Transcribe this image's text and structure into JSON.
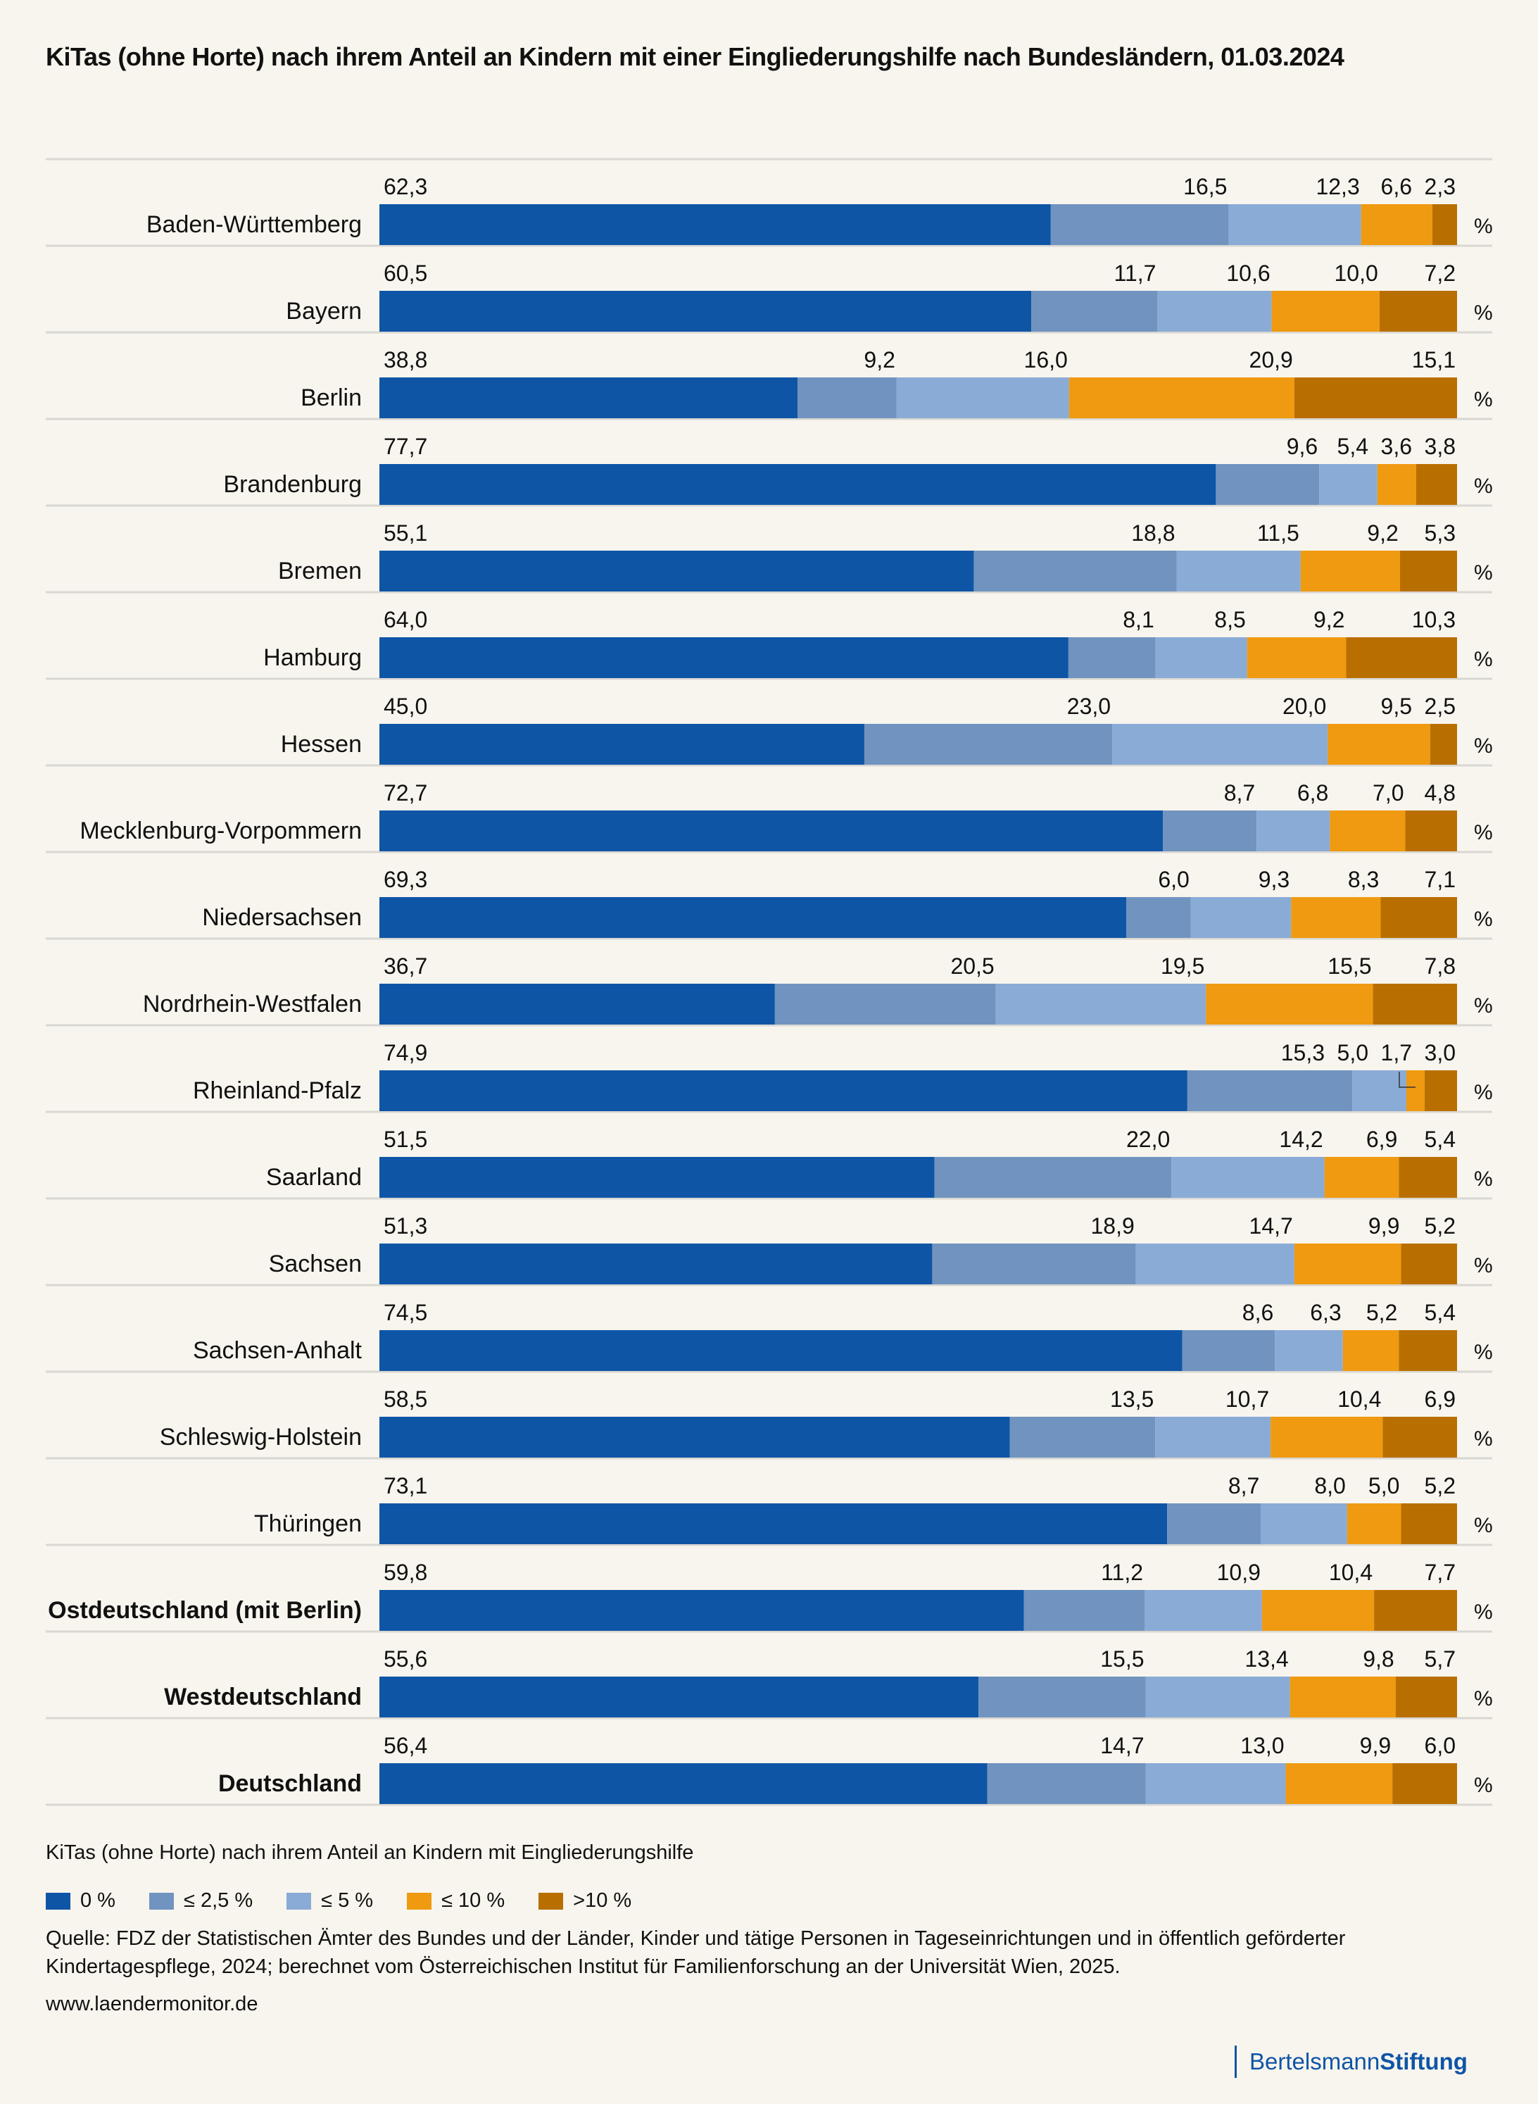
{
  "title": "KiTas (ohne Horte) nach ihrem Anteil an Kindern mit einer Eingliederungshilfe nach Bundesländern, 01.03.2024",
  "unit_label": "%",
  "subtitle": "KiTas (ohne Horte) nach ihrem Anteil an Kindern mit Eingliederungshilfe",
  "legend": [
    {
      "label": "0 %",
      "color": "#0f55a6"
    },
    {
      "label": "≤ 2,5 %",
      "color": "#7094bf"
    },
    {
      "label": "≤ 5 %",
      "color": "#8aabd6"
    },
    {
      "label": "≤ 10 %",
      "color": "#ef9a10"
    },
    {
      "label": ">10 %",
      "color": "#b96f00"
    }
  ],
  "source": "Quelle: FDZ der Statistischen Ämter des Bundes und der Länder, Kinder und tätige Personen in Tageseinrichtungen und in öffentlich geförderter Kindertagespflege, 2024; berechnet vom Österreichischen Institut für Familienforschung an der Universität Wien, 2025.",
  "url": "www.laendermonitor.de",
  "logo": {
    "regular": "Bertelsmann",
    "bold": "Stiftung"
  },
  "chart_data": {
    "type": "bar",
    "orientation": "horizontal",
    "stacked": true,
    "title": "KiTas (ohne Horte) nach ihrem Anteil an Kindern mit einer Eingliederungshilfe nach Bundesländern, 01.03.2024",
    "xlabel": "",
    "ylabel": "",
    "xlim": [
      0,
      100
    ],
    "unit": "%",
    "legend_position": "bottom-left",
    "categories": [
      "Baden-Württemberg",
      "Bayern",
      "Berlin",
      "Brandenburg",
      "Bremen",
      "Hamburg",
      "Hessen",
      "Mecklenburg-Vorpommern",
      "Niedersachsen",
      "Nordrhein-Westfalen",
      "Rheinland-Pfalz",
      "Saarland",
      "Sachsen",
      "Sachsen-Anhalt",
      "Schleswig-Holstein",
      "Thüringen",
      "Ostdeutschland (mit Berlin)",
      "Westdeutschland",
      "Deutschland"
    ],
    "bold_categories": [
      "Ostdeutschland (mit Berlin)",
      "Westdeutschland",
      "Deutschland"
    ],
    "series": [
      {
        "name": "0 %",
        "color": "#0f55a6",
        "values": [
          62.3,
          60.5,
          38.8,
          77.7,
          55.1,
          64.0,
          45.0,
          72.7,
          69.3,
          36.7,
          74.9,
          51.5,
          51.3,
          74.5,
          58.5,
          73.1,
          59.8,
          55.6,
          56.4
        ]
      },
      {
        "name": "≤ 2,5 %",
        "color": "#7094bf",
        "values": [
          16.5,
          11.7,
          9.2,
          9.6,
          18.8,
          8.1,
          23.0,
          8.7,
          6.0,
          20.5,
          15.3,
          22.0,
          18.9,
          8.6,
          13.5,
          8.7,
          11.2,
          15.5,
          14.7
        ]
      },
      {
        "name": "≤ 5 %",
        "color": "#8aabd6",
        "values": [
          12.3,
          10.6,
          16.0,
          5.4,
          11.5,
          8.5,
          20.0,
          6.8,
          9.3,
          19.5,
          5.0,
          14.2,
          14.7,
          6.3,
          10.7,
          8.0,
          10.9,
          13.4,
          13.0
        ]
      },
      {
        "name": "≤ 10 %",
        "color": "#ef9a10",
        "values": [
          6.6,
          10.0,
          20.9,
          3.6,
          9.2,
          9.2,
          9.5,
          7.0,
          8.3,
          15.5,
          1.7,
          6.9,
          9.9,
          5.2,
          10.4,
          5.0,
          10.4,
          9.8,
          9.9
        ]
      },
      {
        "name": ">10 %",
        "color": "#b96f00",
        "values": [
          2.3,
          7.2,
          15.1,
          3.8,
          5.3,
          10.3,
          2.5,
          4.8,
          7.1,
          7.8,
          3.0,
          5.4,
          5.2,
          5.4,
          6.9,
          5.2,
          7.7,
          5.7,
          6.0
        ]
      }
    ],
    "label_format": "decimal-comma-1"
  }
}
